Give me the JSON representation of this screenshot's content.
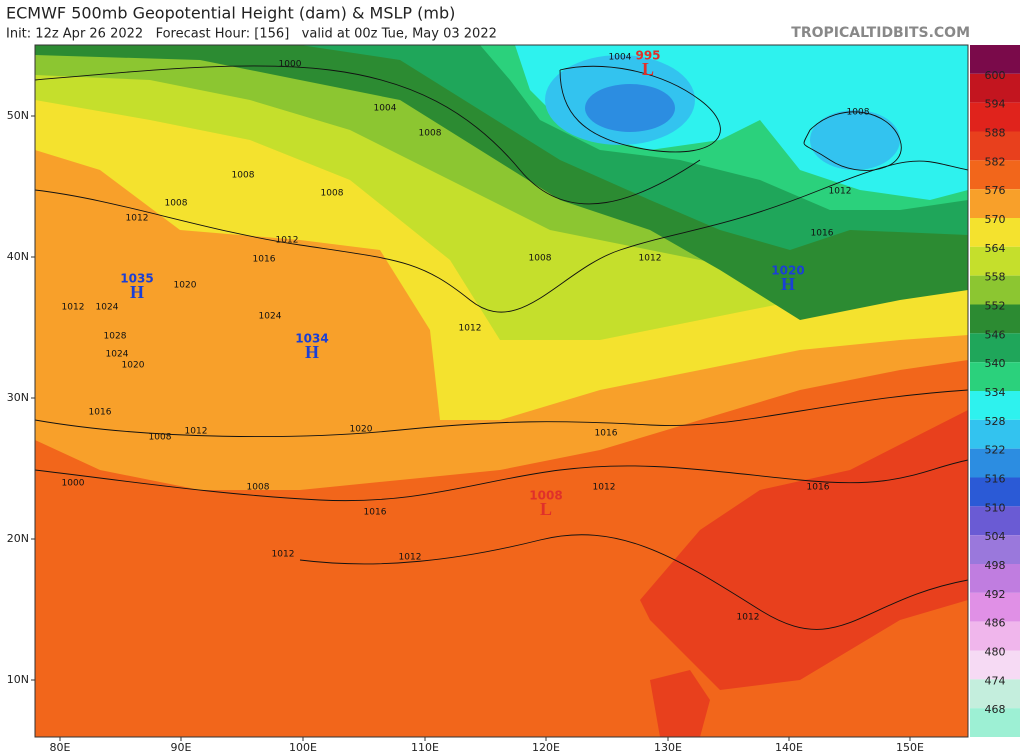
{
  "header": {
    "title": "ECMWF 500mb Geopotential Height (dam) & MSLP (mb)",
    "subtitle": "Init: 12z Apr 26 2022   Forecast Hour: [156]   valid at 00z Tue, May 03 2022",
    "credit": "TROPICALTIDBITS.COM"
  },
  "colorbar": [
    {
      "label": "600",
      "color": "#c3151f"
    },
    {
      "label": "594",
      "color": "#e0231c"
    },
    {
      "label": "588",
      "color": "#e8401d"
    },
    {
      "label": "582",
      "color": "#f2661b"
    },
    {
      "label": "576",
      "color": "#f8a02a"
    },
    {
      "label": "570",
      "color": "#f4e22e"
    },
    {
      "label": "564",
      "color": "#c5df2c"
    },
    {
      "label": "558",
      "color": "#8cc631"
    },
    {
      "label": "552",
      "color": "#2c8b32"
    },
    {
      "label": "546",
      "color": "#1fa65a"
    },
    {
      "label": "540",
      "color": "#2bd17c"
    },
    {
      "label": "534",
      "color": "#2ef2ee"
    },
    {
      "label": "528",
      "color": "#33c3ef"
    },
    {
      "label": "522",
      "color": "#2c8de1"
    },
    {
      "label": "516",
      "color": "#2b5ad6"
    },
    {
      "label": "510",
      "color": "#6a5bd4"
    },
    {
      "label": "504",
      "color": "#9a78dc"
    },
    {
      "label": "498",
      "color": "#c07de0"
    },
    {
      "label": "492",
      "color": "#e090e6"
    },
    {
      "label": "486",
      "color": "#f0b6ec"
    },
    {
      "label": "480",
      "color": "#f6daf4"
    },
    {
      "label": "474",
      "color": "#c4eedd"
    },
    {
      "label": "468",
      "color": "#9df0d4"
    }
  ],
  "longitude_labels": [
    "80E",
    "90E",
    "100E",
    "110E",
    "120E",
    "130E",
    "140E",
    "150E"
  ],
  "latitude_labels": [
    "50N",
    "40N",
    "30N",
    "20N",
    "10N"
  ],
  "pressure_centers": [
    {
      "type": "H",
      "value": "1035"
    },
    {
      "type": "H",
      "value": "1034"
    },
    {
      "type": "H",
      "value": "1020"
    },
    {
      "type": "L",
      "value": "995"
    },
    {
      "type": "L",
      "value": "1008"
    }
  ],
  "contour_labels": [
    "1004",
    "1000",
    "1004",
    "1008",
    "1008",
    "1008",
    "1008",
    "1008",
    "1012",
    "1012",
    "1016",
    "1020",
    "1012",
    "1024",
    "1024",
    "1028",
    "1024",
    "1020",
    "1016",
    "1008",
    "1012",
    "1020",
    "1000",
    "1008",
    "1016",
    "1012",
    "1012",
    "1012",
    "1016",
    "1016",
    "1012",
    "1008",
    "1012",
    "1012",
    "1012",
    "1016"
  ]
}
